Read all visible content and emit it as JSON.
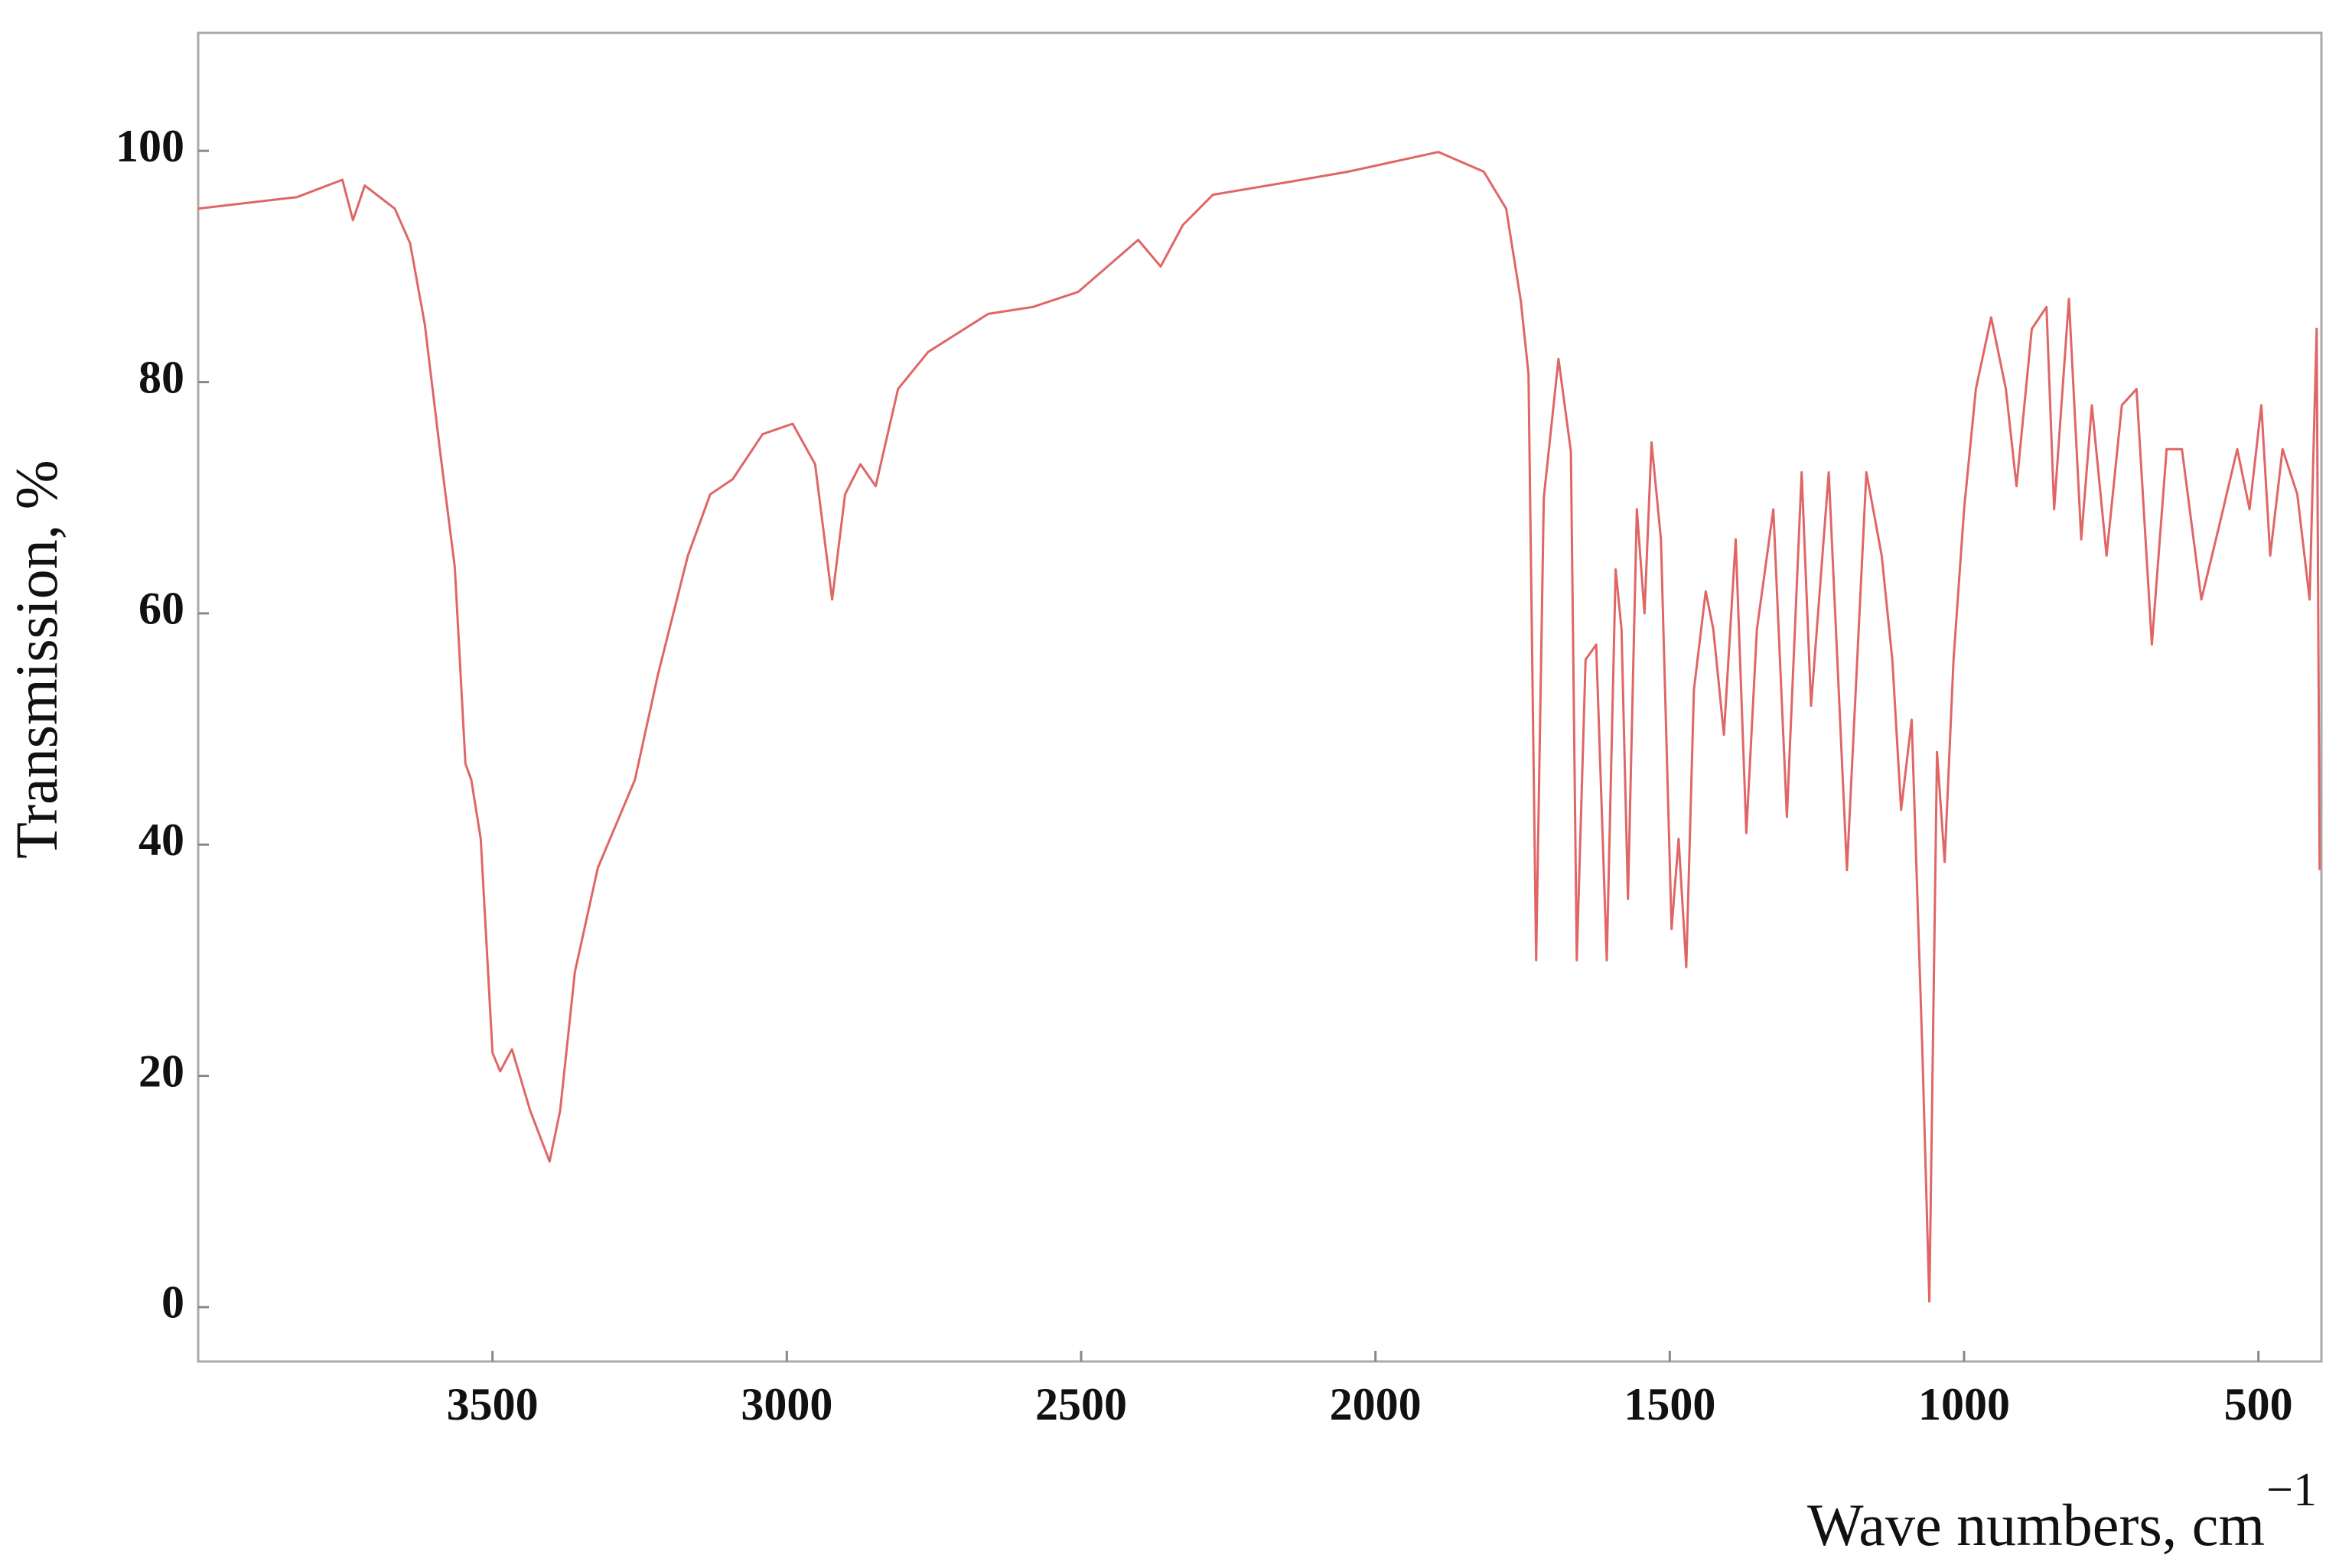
{
  "chart_data": {
    "type": "line",
    "xlabel": "Wave numbers, cm",
    "xlabel_exponent": "−1",
    "ylabel": "Transmission, %",
    "color": "#e06666",
    "xlim": [
      4000,
      393
    ],
    "ylim": [
      -4.7,
      110.2
    ],
    "xticks": [
      3500,
      3000,
      2500,
      2000,
      1500,
      1000,
      500
    ],
    "yticks": [
      0,
      20,
      40,
      60,
      80,
      100
    ],
    "x": [
      4000,
      3832,
      3755,
      3737,
      3717,
      3666,
      3640,
      3615,
      3589,
      3564,
      3546,
      3536,
      3520,
      3500,
      3487,
      3467,
      3436,
      3403,
      3385,
      3360,
      3321,
      3258,
      3219,
      3168,
      3130,
      3092,
      3041,
      2990,
      2952,
      2923,
      2901,
      2875,
      2849,
      2811,
      2760,
      2658,
      2582,
      2505,
      2403,
      2365,
      2327,
      2276,
      2148,
      2046,
      1893,
      1816,
      1778,
      1753,
      1740,
      1727,
      1714,
      1689,
      1668,
      1658,
      1643,
      1625,
      1607,
      1592,
      1582,
      1571,
      1556,
      1543,
      1531,
      1515,
      1497,
      1485,
      1472,
      1459,
      1439,
      1426,
      1408,
      1388,
      1370,
      1352,
      1324,
      1301,
      1276,
      1260,
      1230,
      1199,
      1166,
      1140,
      1122,
      1107,
      1089,
      1071,
      1059,
      1046,
      1033,
      1018,
      1000,
      980,
      954,
      929,
      911,
      885,
      860,
      847,
      822,
      801,
      783,
      758,
      732,
      707,
      681,
      656,
      630,
      597,
      566,
      536,
      515,
      495,
      480,
      459,
      434,
      413,
      401,
      396
    ],
    "values": [
      95,
      96,
      97.5,
      94,
      97,
      95,
      92,
      85,
      74,
      64,
      47,
      45.6,
      40.5,
      22,
      20.4,
      22.3,
      17,
      12.6,
      17,
      29,
      38,
      45.6,
      54.7,
      65,
      70.3,
      71.6,
      75.5,
      76.4,
      72.9,
      61.2,
      70.3,
      72.9,
      71,
      79.4,
      82.6,
      85.9,
      86.5,
      87.8,
      92.3,
      90,
      93.6,
      96.2,
      97.3,
      98.2,
      99.9,
      98.2,
      95,
      87,
      80.7,
      30,
      70,
      82,
      74,
      30,
      56,
      57.3,
      30,
      63.8,
      58.6,
      35.3,
      69,
      60,
      74.8,
      66.4,
      32.7,
      40.5,
      29.4,
      53.4,
      61.9,
      58.6,
      49.5,
      66.4,
      41,
      58.6,
      69,
      42.4,
      72.2,
      52,
      72.2,
      37.8,
      72.2,
      65,
      56,
      43,
      50.8,
      22.3,
      0.5,
      48,
      38.5,
      56,
      69,
      79.4,
      85.6,
      79.4,
      71,
      84.6,
      86.5,
      69,
      87.2,
      66.4,
      78,
      65,
      78,
      79.4,
      57.3,
      74.2,
      74.2,
      61.2,
      67.7,
      74.2,
      69,
      78,
      65,
      74.2,
      70.3,
      61.2,
      84.6,
      37.8
    ]
  }
}
